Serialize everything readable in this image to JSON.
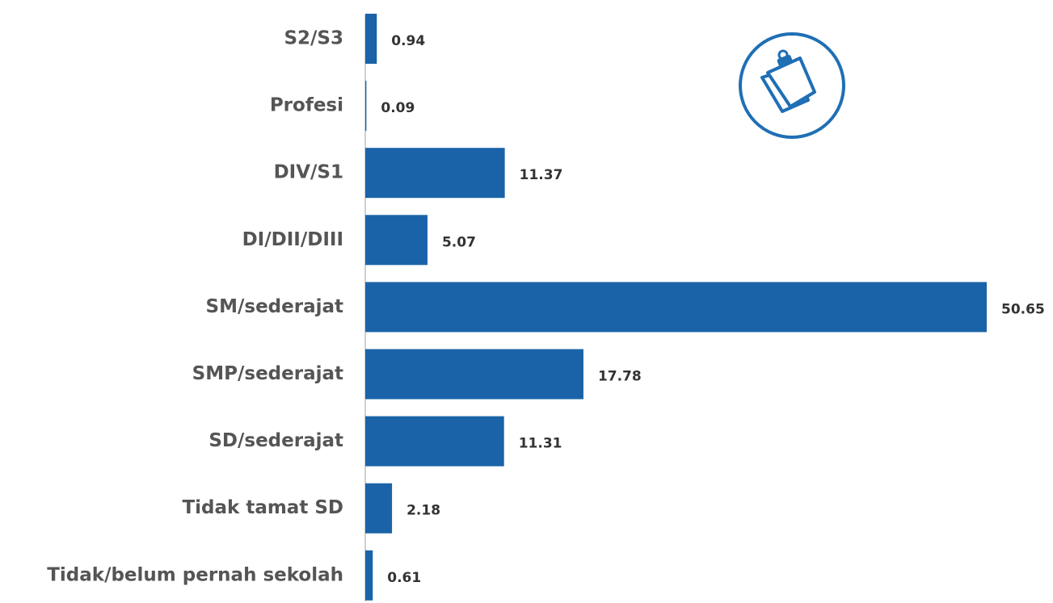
{
  "chart_data": {
    "type": "barh",
    "categories": [
      "S2/S3",
      "Profesi",
      "DIV/S1",
      "DI/DII/DIII",
      "SM/sederajat",
      "SMP/sederajat",
      "SD/sederajat",
      "Tidak tamat SD",
      "Tidak/belum pernah sekolah"
    ],
    "values": [
      0.94,
      0.09,
      11.37,
      5.07,
      50.65,
      17.78,
      11.31,
      2.18,
      0.61
    ],
    "color": "#1a63a8"
  }
}
